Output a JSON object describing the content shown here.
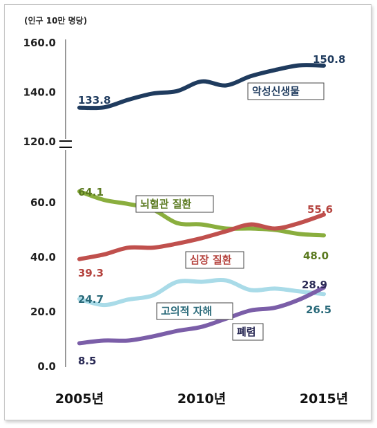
{
  "chart_data": {
    "type": "line",
    "unit_label": "(인구 10만 명당)",
    "x_ticks": [
      "2005년",
      "2010년",
      "2015년"
    ],
    "y_ticks_upper": [
      "160.0",
      "140.0",
      "120.0"
    ],
    "y_ticks_lower": [
      "60.0",
      "40.0",
      "20.0",
      "0.0"
    ],
    "y_axis_break": true,
    "ylim_upper": [
      120,
      160
    ],
    "ylim_lower": [
      0,
      70
    ],
    "grid": false,
    "x": [
      2005,
      2006,
      2007,
      2008,
      2009,
      2010,
      2011,
      2012,
      2013,
      2014,
      2015
    ],
    "series": [
      {
        "name": "악성신생물",
        "color": "#1f3b5e",
        "panel": "upper",
        "values": [
          133.8,
          133.9,
          137.0,
          139.5,
          140.5,
          144.4,
          142.8,
          146.5,
          149.0,
          150.9,
          150.8
        ],
        "start_label": "133.8",
        "end_label": "150.8"
      },
      {
        "name": "뇌혈관 질환",
        "color": "#8aae3e",
        "panel": "lower",
        "values": [
          64.1,
          61.0,
          59.5,
          57.5,
          52.5,
          52.0,
          50.5,
          50.5,
          50.0,
          48.5,
          48.0
        ],
        "start_label": "64.1",
        "end_label": "48.0"
      },
      {
        "name": "심장 질환",
        "color": "#c0504d",
        "panel": "lower",
        "values": [
          39.3,
          41.0,
          43.5,
          43.5,
          45.0,
          47.0,
          49.5,
          52.0,
          50.5,
          52.5,
          55.6
        ],
        "start_label": "39.3",
        "end_label": "55.6"
      },
      {
        "name": "고의적 자해",
        "color": "#a9dbe8",
        "panel": "lower",
        "values": [
          24.7,
          22.5,
          24.5,
          26.0,
          31.0,
          31.0,
          31.5,
          28.0,
          28.5,
          27.5,
          26.5
        ],
        "start_label": "24.7",
        "end_label": "26.5"
      },
      {
        "name": "폐렴",
        "color": "#7b5ea8",
        "panel": "lower",
        "values": [
          8.5,
          9.5,
          9.5,
          11.0,
          13.0,
          14.5,
          17.5,
          20.5,
          21.5,
          24.5,
          28.9
        ],
        "start_label": "8.5",
        "end_label": "28.9"
      }
    ]
  }
}
